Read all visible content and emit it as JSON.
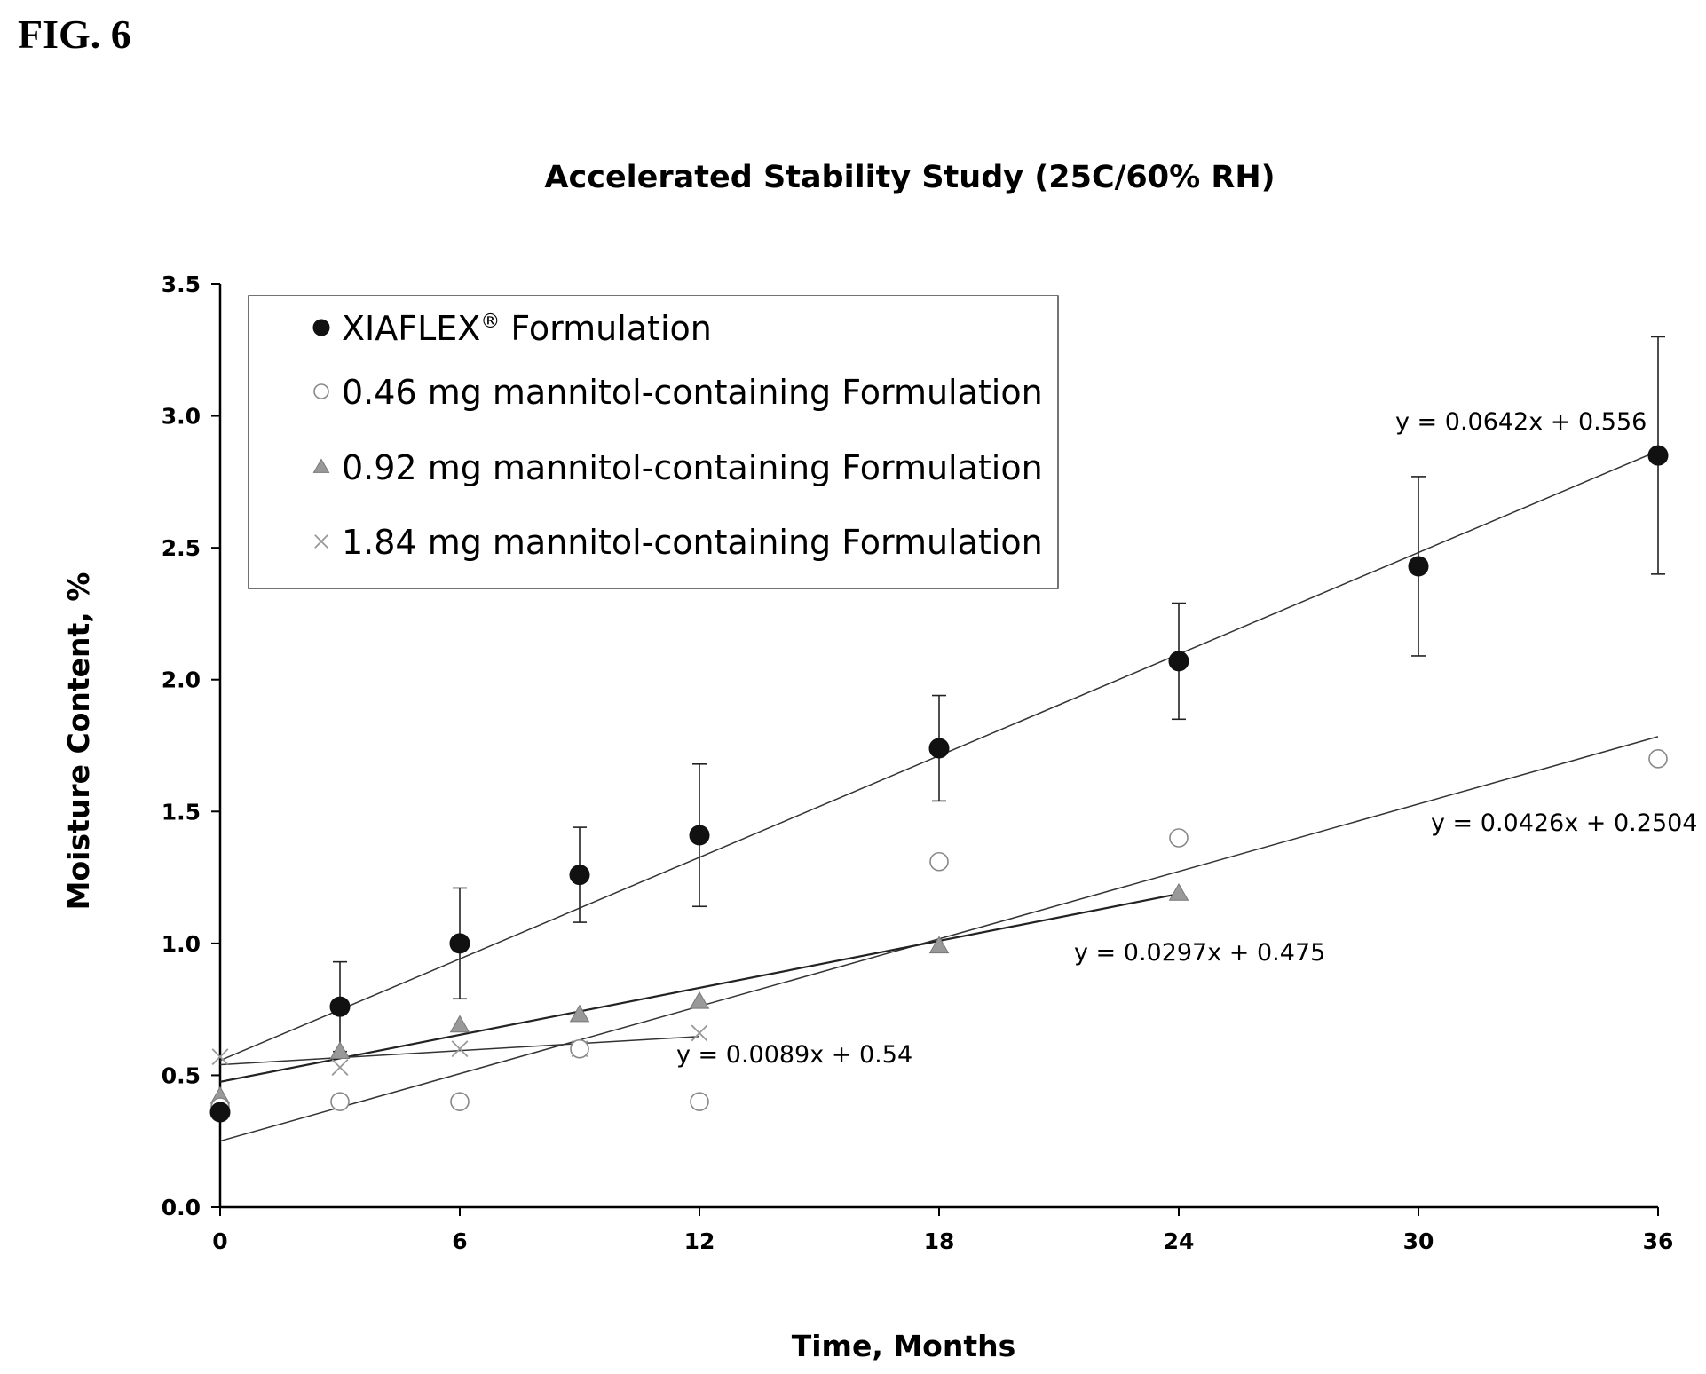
{
  "figure_label": "FIG. 6",
  "chart_data": {
    "type": "scatter",
    "title": "Accelerated Stability Study (25C/60% RH)",
    "xlabel": "Time, Months",
    "ylabel": "Moisture Content, %",
    "xlim": [
      0,
      36
    ],
    "ylim": [
      0.0,
      3.5
    ],
    "xticks": [
      "0",
      "6",
      "12",
      "18",
      "24",
      "30",
      "36"
    ],
    "xtick_values": [
      0,
      6,
      12,
      18,
      24,
      30,
      36
    ],
    "yticks": [
      "0.0",
      "0.5",
      "1.0",
      "1.5",
      "2.0",
      "2.5",
      "3.0",
      "3.5"
    ],
    "ytick_values": [
      0.0,
      0.5,
      1.0,
      1.5,
      2.0,
      2.5,
      3.0,
      3.5
    ],
    "grid": false,
    "legend_position": "top-left",
    "series": [
      {
        "name": "XIAFLEX",
        "name_superscript": "®",
        "name_suffix": " Formulation",
        "marker": "filled-circle",
        "color": "#111111",
        "x": [
          0,
          3,
          6,
          9,
          12,
          18,
          24,
          30,
          36
        ],
        "y": [
          0.36,
          0.76,
          1.0,
          1.26,
          1.41,
          1.74,
          2.07,
          2.43,
          2.85
        ],
        "error": [
          0.0,
          0.17,
          0.21,
          0.18,
          0.27,
          0.2,
          0.22,
          0.34,
          0.45
        ],
        "trendline": {
          "slope": 0.0642,
          "intercept": 0.556,
          "x_range": [
            0,
            36
          ],
          "label": "y = 0.0642x + 0.556"
        }
      },
      {
        "name": "0.46 mg mannitol-containing Formulation",
        "marker": "open-circle",
        "color": "#888888",
        "x": [
          0,
          3,
          6,
          9,
          12,
          18,
          24,
          36
        ],
        "y": [
          0.38,
          0.4,
          0.4,
          0.6,
          0.4,
          1.31,
          1.4,
          1.7
        ],
        "trendline": {
          "slope": 0.0426,
          "intercept": 0.2504,
          "x_range": [
            0,
            36
          ],
          "label": "y = 0.0426x + 0.2504"
        }
      },
      {
        "name": "0.92 mg mannitol-containing Formulation",
        "marker": "triangle",
        "color": "#999999",
        "x": [
          0,
          3,
          6,
          9,
          12,
          18,
          24
        ],
        "y": [
          0.42,
          0.59,
          0.69,
          0.73,
          0.78,
          0.99,
          1.19
        ],
        "trendline": {
          "slope": 0.0297,
          "intercept": 0.475,
          "x_range": [
            0,
            24
          ],
          "label": "y = 0.0297x + 0.475"
        }
      },
      {
        "name": "1.84 mg mannitol-containing Formulation",
        "marker": "x",
        "color": "#999999",
        "x": [
          0,
          3,
          6,
          9,
          12
        ],
        "y": [
          0.57,
          0.53,
          0.6,
          0.6,
          0.66
        ],
        "trendline": {
          "slope": 0.0089,
          "intercept": 0.54,
          "x_range": [
            0,
            12
          ],
          "label": "y = 0.0089x + 0.54"
        }
      }
    ]
  }
}
